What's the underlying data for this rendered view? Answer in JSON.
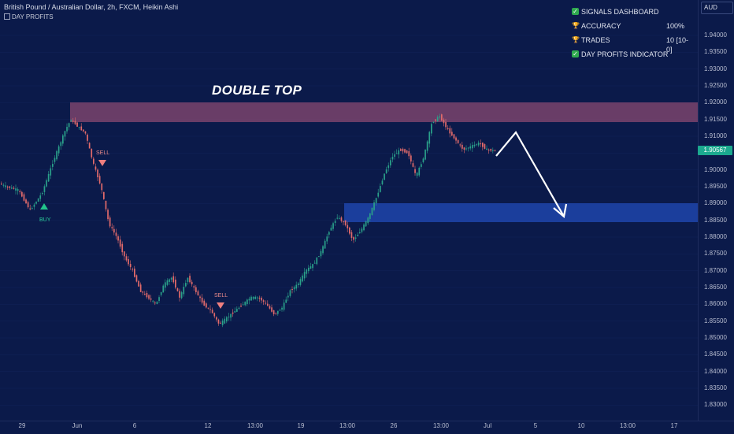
{
  "header": {
    "title": "British Pound / Australian Dollar, 2h, FXCM, Heikin Ashi",
    "indicator": "DAY PROFITS"
  },
  "dashboard": {
    "items": [
      {
        "icon": "check-icon",
        "label": "SIGNALS DASHBOARD",
        "value": ""
      },
      {
        "icon": "trophy-icon",
        "label": "ACCURACY",
        "value": "100%"
      },
      {
        "icon": "trophy-icon",
        "label": "TRADES",
        "value": "10 [10-0]"
      },
      {
        "icon": "check-icon",
        "label": "DAY PROFITS INDICATOR",
        "value": ""
      }
    ]
  },
  "currency": "AUD",
  "current_price": "1.90567",
  "annotation": "DOUBLE TOP",
  "signals": [
    {
      "label": "SELL",
      "type": "sell"
    },
    {
      "label": "BUY",
      "type": "buy"
    },
    {
      "label": "SELL",
      "type": "sell"
    }
  ],
  "colors": {
    "background": "#0b1a4a",
    "bull": "#2aa08a",
    "bear": "#e26a6a",
    "resistance_zone": "#8a4a72",
    "support_zone": "#1f47b0",
    "price_tag": "#1ba98f"
  },
  "chart_data": {
    "type": "candlestick",
    "price_ticks": [
      "1.94000",
      "1.93500",
      "1.93000",
      "1.92500",
      "1.92000",
      "1.91500",
      "1.91000",
      "1.90500",
      "1.90000",
      "1.89500",
      "1.89000",
      "1.88500",
      "1.88000",
      "1.87500",
      "1.87000",
      "1.86500",
      "1.86000",
      "1.85500",
      "1.85000",
      "1.84500",
      "1.84000",
      "1.83500",
      "1.83000"
    ],
    "time_ticks": [
      "29",
      "Jun",
      "6",
      "12",
      "13:00",
      "19",
      "13:00",
      "26",
      "13:00",
      "Jul",
      "5",
      "10",
      "13:00",
      "17"
    ],
    "ylim": [
      1.8275,
      1.9475
    ],
    "zones": [
      {
        "name": "resistance",
        "from": 1.913,
        "to": 1.9185
      },
      {
        "name": "support",
        "from": 1.8846,
        "to": 1.8897
      }
    ],
    "path": [
      [
        0,
        1.896
      ],
      [
        10,
        1.895
      ],
      [
        25,
        1.894
      ],
      [
        40,
        1.888
      ],
      [
        55,
        1.893
      ],
      [
        70,
        1.903
      ],
      [
        85,
        1.912
      ],
      [
        92,
        1.915
      ],
      [
        100,
        1.913
      ],
      [
        110,
        1.911
      ],
      [
        120,
        1.902
      ],
      [
        130,
        1.895
      ],
      [
        140,
        1.884
      ],
      [
        150,
        1.88
      ],
      [
        160,
        1.874
      ],
      [
        170,
        1.87
      ],
      [
        180,
        1.864
      ],
      [
        190,
        1.862
      ],
      [
        200,
        1.86
      ],
      [
        210,
        1.866
      ],
      [
        220,
        1.868
      ],
      [
        230,
        1.862
      ],
      [
        240,
        1.868
      ],
      [
        250,
        1.864
      ],
      [
        260,
        1.86
      ],
      [
        270,
        1.858
      ],
      [
        280,
        1.854
      ],
      [
        290,
        1.856
      ],
      [
        300,
        1.858
      ],
      [
        310,
        1.86
      ],
      [
        320,
        1.862
      ],
      [
        330,
        1.862
      ],
      [
        340,
        1.86
      ],
      [
        350,
        1.857
      ],
      [
        360,
        1.859
      ],
      [
        370,
        1.864
      ],
      [
        380,
        1.866
      ],
      [
        390,
        1.87
      ],
      [
        400,
        1.872
      ],
      [
        410,
        1.876
      ],
      [
        420,
        1.882
      ],
      [
        430,
        1.886
      ],
      [
        440,
        1.884
      ],
      [
        450,
        1.879
      ],
      [
        460,
        1.882
      ],
      [
        470,
        1.886
      ],
      [
        480,
        1.892
      ],
      [
        490,
        1.899
      ],
      [
        500,
        1.904
      ],
      [
        510,
        1.906
      ],
      [
        520,
        1.905
      ],
      [
        530,
        1.898
      ],
      [
        540,
        1.904
      ],
      [
        550,
        1.914
      ],
      [
        560,
        1.916
      ],
      [
        570,
        1.912
      ],
      [
        580,
        1.909
      ],
      [
        590,
        1.906
      ],
      [
        600,
        1.907
      ],
      [
        610,
        1.908
      ],
      [
        620,
        1.906
      ],
      [
        630,
        1.9057
      ]
    ]
  }
}
